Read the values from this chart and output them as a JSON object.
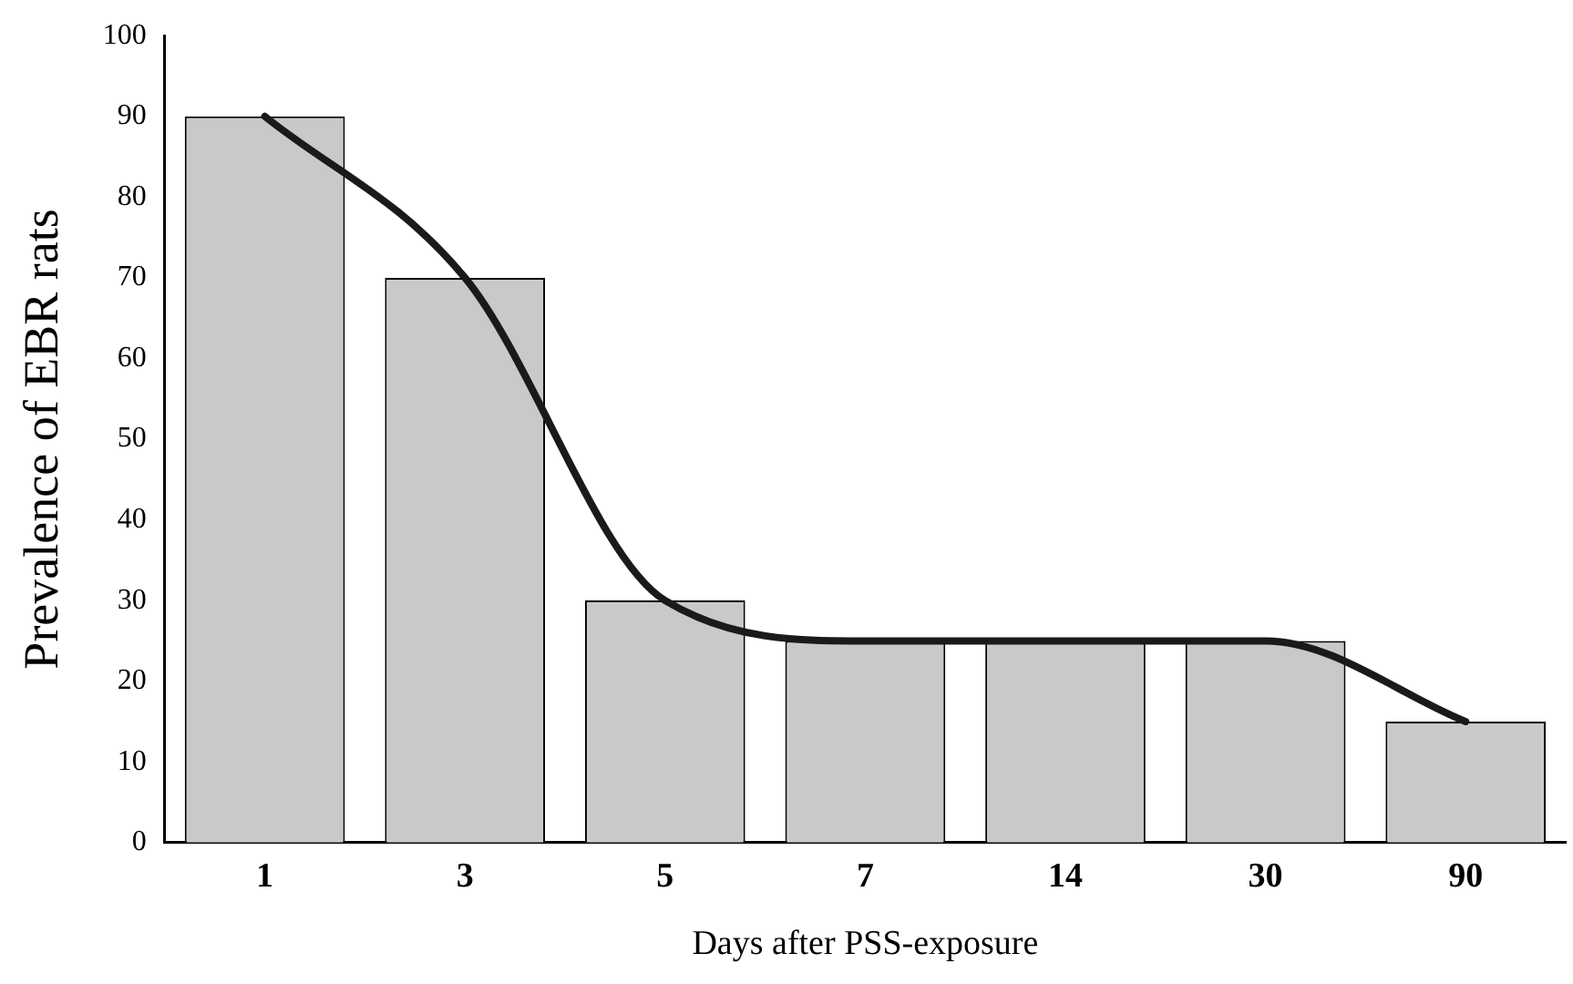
{
  "chart_data": {
    "type": "bar",
    "xlabel": "Days after PSS-exposure",
    "ylabel": "Prevalence of EBR rats",
    "categories": [
      "1",
      "3",
      "5",
      "7",
      "14",
      "30",
      "90"
    ],
    "series": [
      {
        "color": "#c8c9cb",
        "values": [
          90,
          70,
          30,
          25,
          25,
          25,
          15
        ]
      },
      {
        "type": "line",
        "color": "#1a1a1a",
        "values": [
          90,
          70,
          30,
          25,
          25,
          25,
          15
        ]
      }
    ],
    "ylim": [
      0,
      100
    ],
    "yticks": [
      0,
      10,
      20,
      30,
      40,
      50,
      60,
      70,
      80,
      90,
      100
    ],
    "grid": false,
    "legend": false,
    "marker": "none",
    "line_style": "solid"
  }
}
